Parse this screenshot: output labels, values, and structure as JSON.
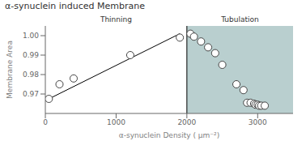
{
  "chart_data": {
    "type": "scatter",
    "title": "α-synuclein induced Membrane",
    "xlabel": "α-synuclein Density ( μm⁻²)",
    "ylabel": "Membrane Area",
    "xlim": [
      0,
      3500
    ],
    "ylim": [
      0.96,
      1.005
    ],
    "xticks": [
      0,
      1000,
      2000,
      3000
    ],
    "yticks": [
      0.97,
      0.98,
      0.99,
      {
        "value": 1.0,
        "label": "1.00"
      }
    ],
    "grid": false,
    "regions": [
      {
        "label": "Thinning",
        "from": 0,
        "to": 2000
      },
      {
        "label": "Tubulation",
        "from": 2000,
        "to": 3500,
        "color": "#7fa8a8"
      }
    ],
    "series": [
      {
        "type": "scatter",
        "marker": "circle",
        "color": "#444444",
        "x": [
          50,
          200,
          400,
          1200,
          1900
        ],
        "values": [
          0.9675,
          0.975,
          0.978,
          0.99,
          0.999
        ]
      },
      {
        "type": "scatter",
        "marker": "circle",
        "color": "#444444",
        "x": [
          2050,
          2100,
          2200,
          2300,
          2400,
          2500,
          2700,
          2800,
          2850,
          2900,
          2950,
          2970,
          3000,
          3020,
          3050,
          3100
        ],
        "values": [
          1.001,
          0.9995,
          0.997,
          0.994,
          0.991,
          0.985,
          0.975,
          0.972,
          0.9655,
          0.9655,
          0.965,
          0.9645,
          0.9645,
          0.964,
          0.964,
          0.964
        ]
      },
      {
        "type": "line",
        "line_style": "solid",
        "color": "#000000",
        "x": [
          50,
          1900
        ],
        "values": [
          0.9675,
          1.001
        ]
      }
    ]
  }
}
